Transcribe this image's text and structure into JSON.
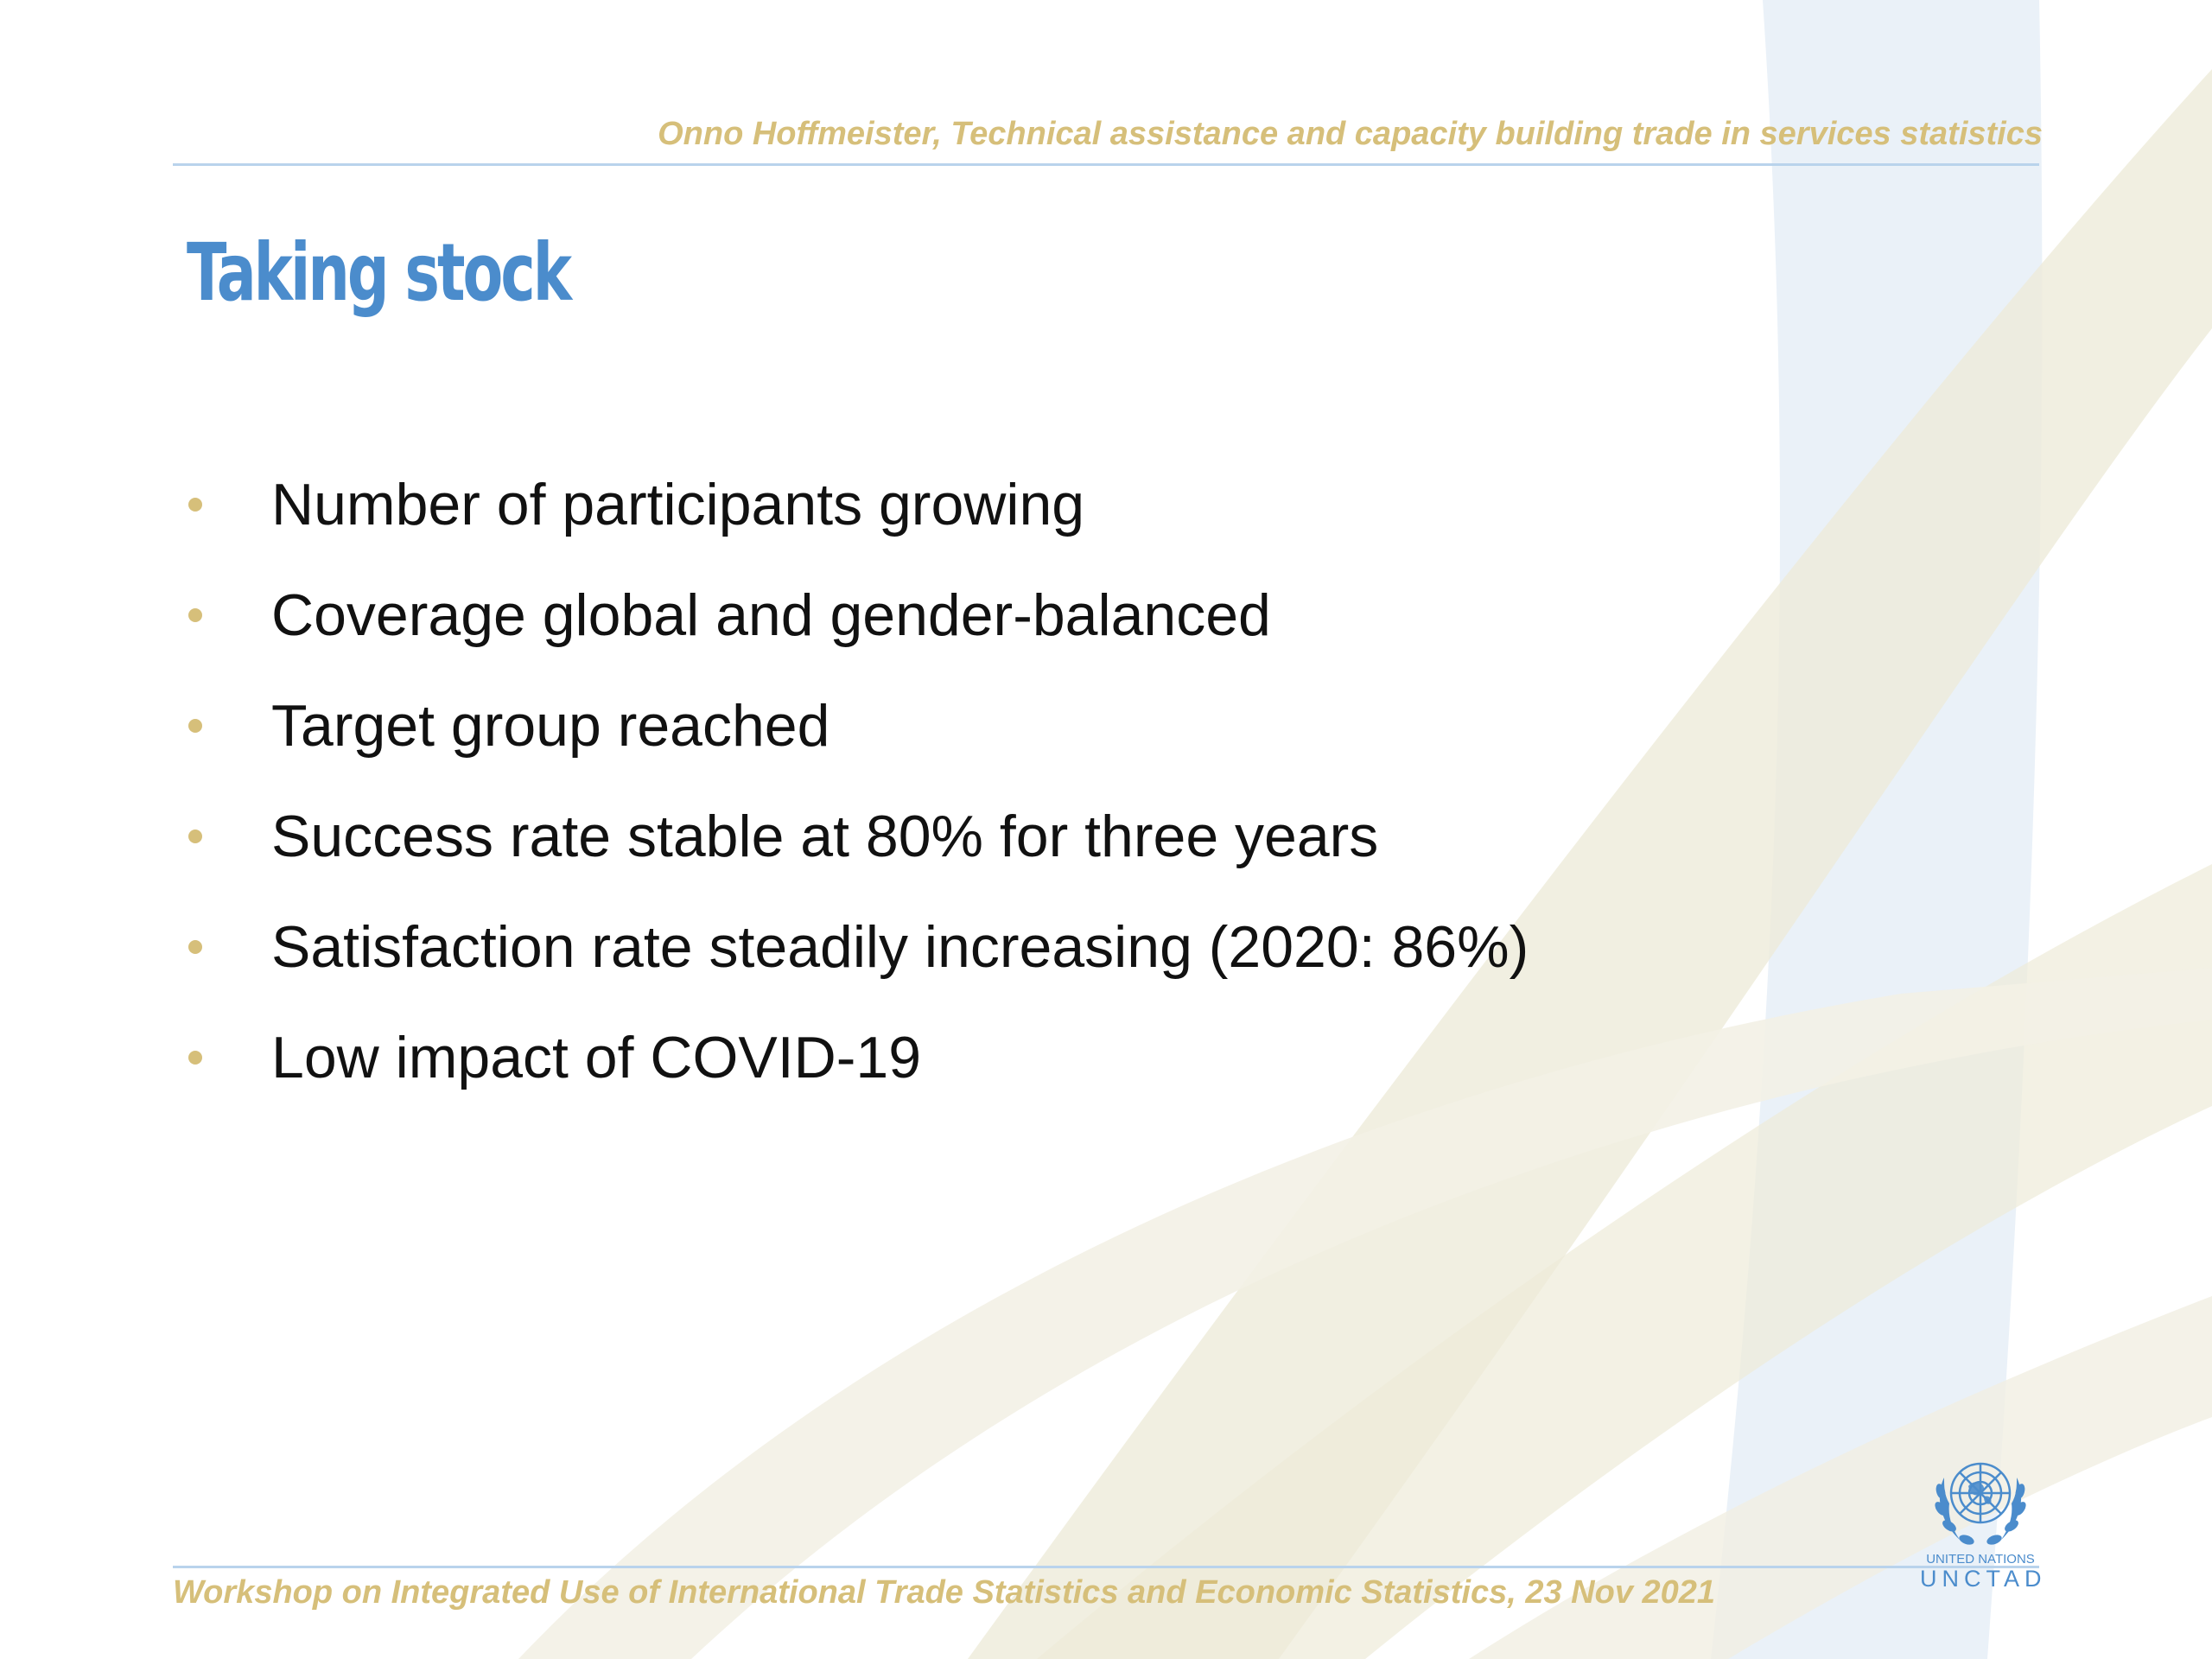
{
  "header": {
    "text": "Onno Hoffmeister, Technical assistance and capacity building trade in services statistics"
  },
  "slide": {
    "title": "Taking stock",
    "bullets": [
      "Number of participants growing",
      "Coverage global and gender-balanced",
      "Target group reached",
      "Success rate stable at 80% for three years",
      "Satisfaction rate steadily increasing (2020: 86%)",
      "Low impact of COVID-19"
    ]
  },
  "footer": {
    "text": "Workshop on Integrated Use of International Trade Statistics and Economic Statistics, 23 Nov 2021"
  },
  "logo": {
    "icon": "un-emblem-icon",
    "small_text": "UNITED NATIONS",
    "big_text": "UNCTAD"
  },
  "colors": {
    "title": "#4b8ccc",
    "accent_gold": "#d6bf7a",
    "rule_blue": "#b9d3ec",
    "body_text": "#111111"
  }
}
